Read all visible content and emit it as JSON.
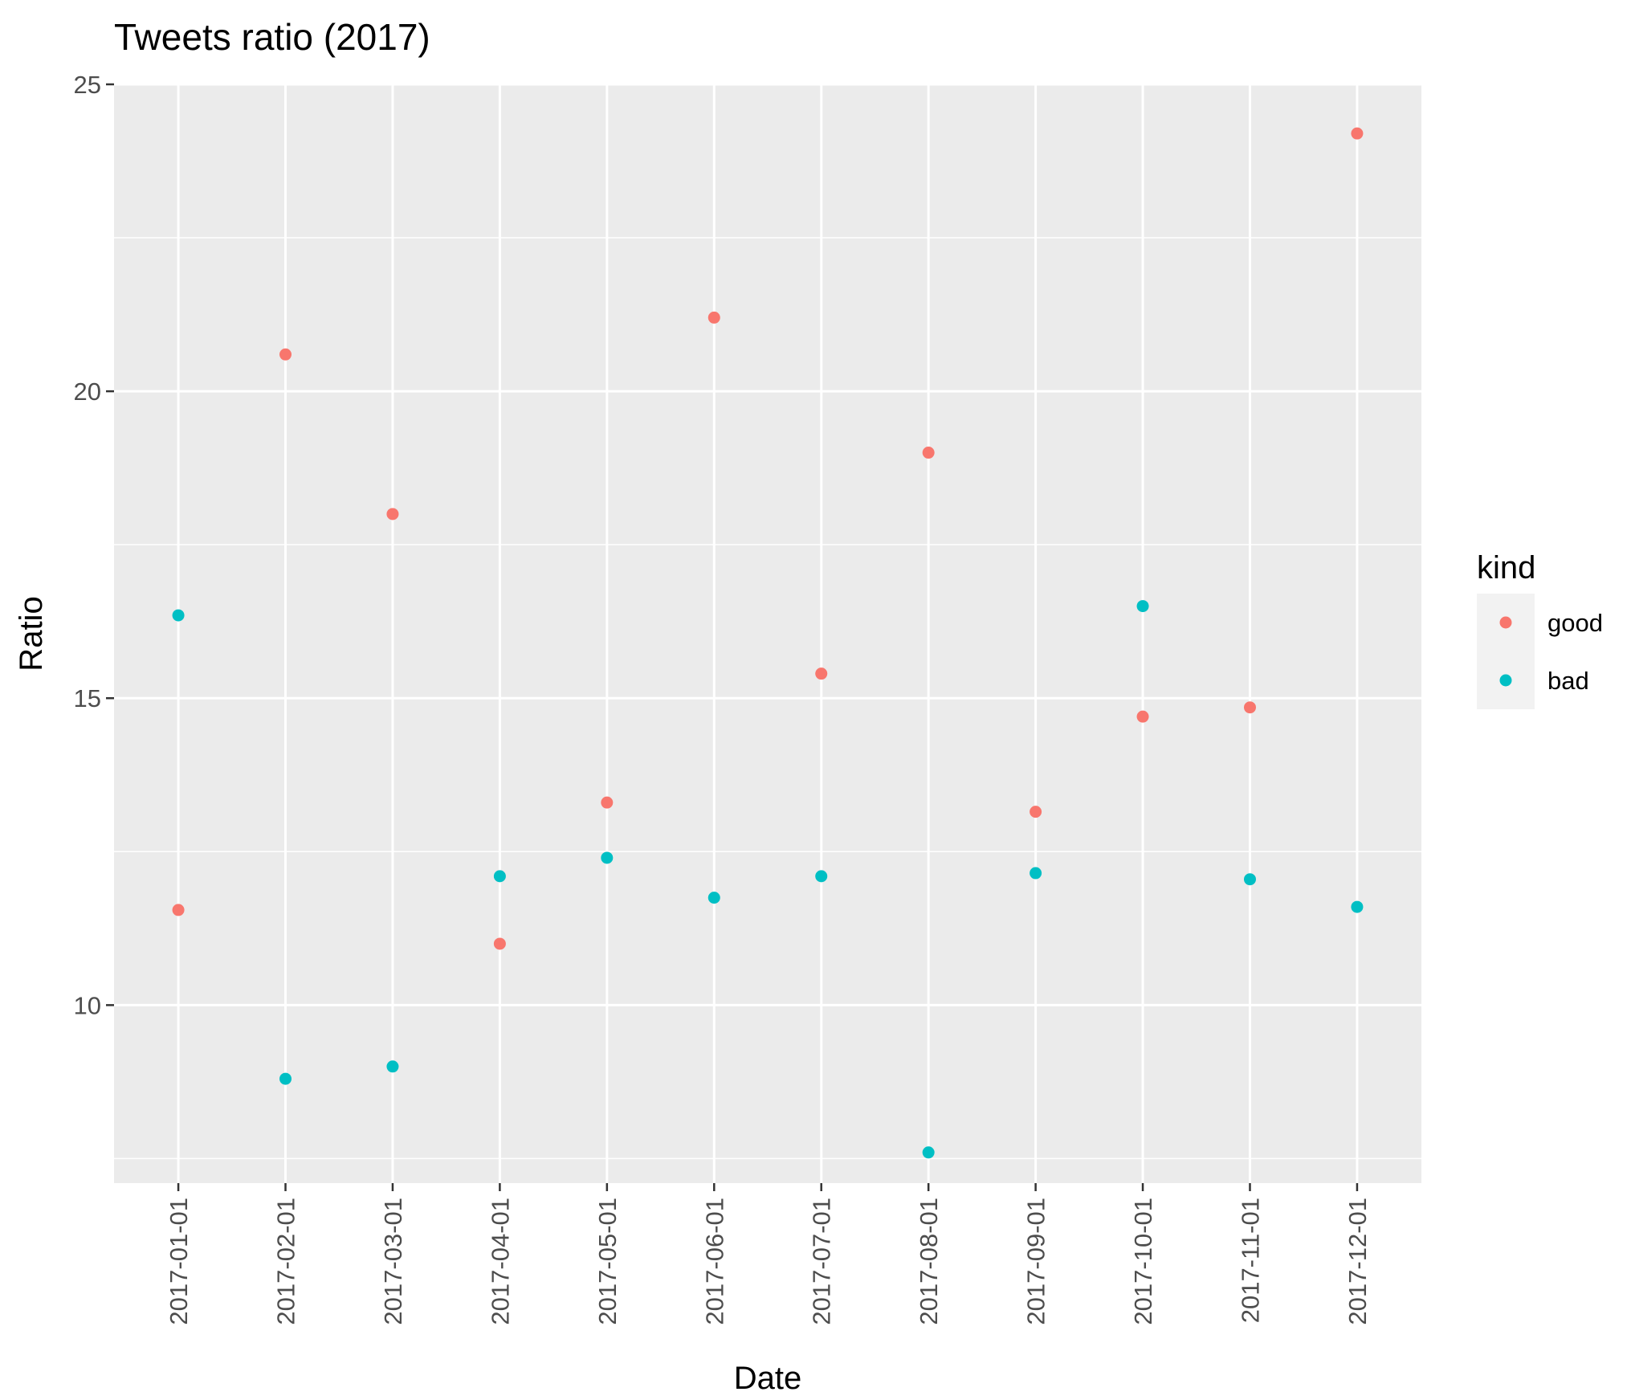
{
  "chart_data": {
    "type": "scatter",
    "title": "Tweets ratio (2017)",
    "xlabel": "Date",
    "ylabel": "Ratio",
    "categories": [
      "2017-01-01",
      "2017-02-01",
      "2017-03-01",
      "2017-04-01",
      "2017-05-01",
      "2017-06-01",
      "2017-07-01",
      "2017-08-01",
      "2017-09-01",
      "2017-10-01",
      "2017-11-01",
      "2017-12-01"
    ],
    "ylim": [
      7.1,
      25
    ],
    "yticks": [
      10,
      15,
      20,
      25
    ],
    "ytick_labels": [
      "10",
      "15",
      "20",
      "25"
    ],
    "grid": true,
    "legend": {
      "title": "kind",
      "position": "right"
    },
    "series": [
      {
        "name": "good",
        "color": "#F8766D",
        "values": [
          11.55,
          20.6,
          18.0,
          11.0,
          13.3,
          21.2,
          15.4,
          19.0,
          13.15,
          14.7,
          14.85,
          24.2
        ]
      },
      {
        "name": "bad",
        "color": "#00BFC4",
        "values": [
          16.35,
          8.8,
          9.0,
          12.1,
          12.4,
          11.75,
          12.1,
          7.6,
          12.15,
          16.5,
          12.05,
          11.6
        ]
      }
    ]
  }
}
